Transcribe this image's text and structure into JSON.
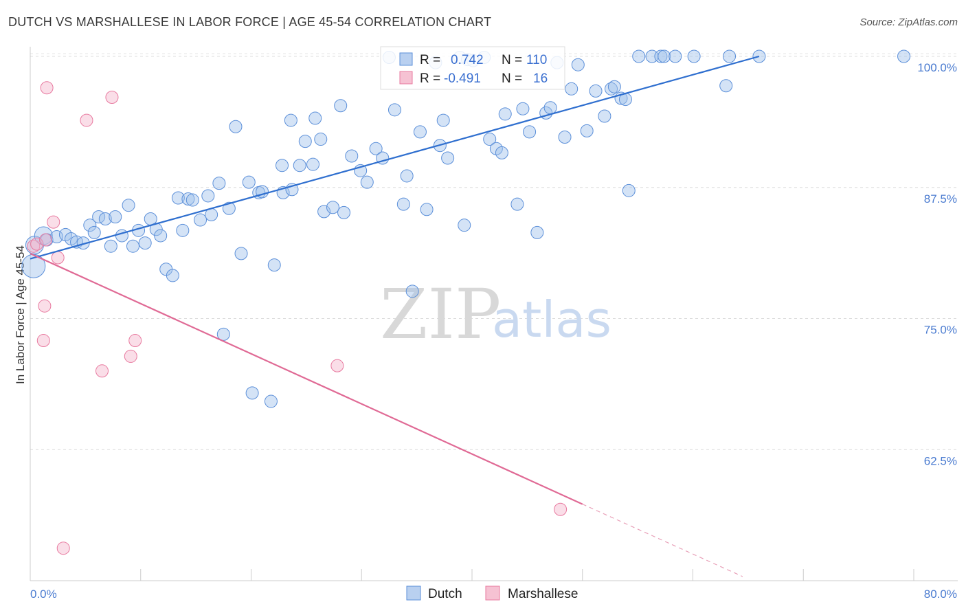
{
  "title": "DUTCH VS MARSHALLESE IN LABOR FORCE | AGE 45-54 CORRELATION CHART",
  "source": "Source: ZipAtlas.com",
  "watermark": {
    "zip": "ZIP",
    "atlas": "atlas"
  },
  "legend_box": {
    "r_label": "R =",
    "n_label": "N =",
    "rows": [
      {
        "r": "0.742",
        "n": "110",
        "color": "#5b8fd9"
      },
      {
        "r": "-0.491",
        "n": "16",
        "color": "#e8799f"
      }
    ]
  },
  "bottom_legend": [
    {
      "name": "Dutch",
      "color": "#5b8fd9"
    },
    {
      "name": "Marshallese",
      "color": "#e8799f"
    }
  ],
  "chart_data": {
    "type": "scatter",
    "title": "DUTCH VS MARSHALLESE IN LABOR FORCE | AGE 45-54 CORRELATION CHART",
    "xlabel": "",
    "ylabel": "In Labor Force | Age 45-54",
    "xlim": [
      0,
      80
    ],
    "ylim": [
      50,
      100
    ],
    "x_tick_labels": [
      "0.0%",
      "80.0%"
    ],
    "y_ticks": [
      62.5,
      75.0,
      87.5,
      100.0
    ],
    "y_tick_labels": [
      "62.5%",
      "75.0%",
      "87.5%",
      "100.0%"
    ],
    "grid": true,
    "series": [
      {
        "name": "Dutch",
        "color": "#5b8fd9",
        "r": 0.742,
        "n": 110,
        "trend": {
          "x0": 0,
          "y0": 80.7,
          "x1": 66,
          "y1": 100.0
        },
        "points": [
          [
            0.3,
            80.0
          ],
          [
            0.4,
            82.0
          ],
          [
            1.2,
            82.9
          ],
          [
            1.5,
            82.5
          ],
          [
            2.4,
            82.8
          ],
          [
            3.2,
            83.0
          ],
          [
            3.7,
            82.6
          ],
          [
            4.2,
            82.3
          ],
          [
            4.8,
            82.2
          ],
          [
            5.4,
            83.9
          ],
          [
            5.8,
            83.2
          ],
          [
            6.2,
            84.7
          ],
          [
            6.8,
            84.5
          ],
          [
            7.3,
            81.9
          ],
          [
            7.7,
            84.7
          ],
          [
            8.3,
            82.9
          ],
          [
            8.9,
            85.8
          ],
          [
            9.3,
            81.9
          ],
          [
            9.8,
            83.4
          ],
          [
            10.4,
            82.2
          ],
          [
            10.9,
            84.5
          ],
          [
            11.4,
            83.5
          ],
          [
            11.8,
            82.9
          ],
          [
            12.3,
            79.7
          ],
          [
            12.9,
            79.1
          ],
          [
            13.4,
            86.5
          ],
          [
            13.8,
            83.4
          ],
          [
            14.3,
            86.4
          ],
          [
            14.7,
            86.3
          ],
          [
            15.4,
            84.4
          ],
          [
            16.1,
            86.7
          ],
          [
            16.4,
            84.9
          ],
          [
            17.1,
            87.9
          ],
          [
            17.5,
            73.5
          ],
          [
            18.0,
            85.5
          ],
          [
            18.6,
            93.3
          ],
          [
            19.1,
            81.2
          ],
          [
            19.8,
            88.0
          ],
          [
            20.1,
            67.9
          ],
          [
            20.7,
            87.0
          ],
          [
            21.0,
            87.1
          ],
          [
            21.8,
            67.1
          ],
          [
            22.1,
            80.1
          ],
          [
            22.8,
            89.6
          ],
          [
            22.9,
            87.0
          ],
          [
            23.6,
            93.9
          ],
          [
            23.7,
            87.3
          ],
          [
            24.4,
            89.6
          ],
          [
            24.9,
            91.9
          ],
          [
            25.6,
            89.7
          ],
          [
            25.8,
            94.1
          ],
          [
            26.3,
            92.1
          ],
          [
            26.6,
            85.2
          ],
          [
            27.4,
            85.6
          ],
          [
            28.1,
            95.3
          ],
          [
            28.4,
            85.1
          ],
          [
            29.1,
            90.5
          ],
          [
            29.9,
            89.1
          ],
          [
            30.5,
            88.0
          ],
          [
            31.3,
            91.2
          ],
          [
            31.9,
            90.3
          ],
          [
            32.5,
            99.9
          ],
          [
            33.0,
            94.9
          ],
          [
            33.8,
            85.9
          ],
          [
            34.1,
            88.6
          ],
          [
            34.6,
            77.6
          ],
          [
            35.3,
            92.8
          ],
          [
            35.9,
            85.4
          ],
          [
            36.7,
            99.4
          ],
          [
            37.1,
            91.5
          ],
          [
            37.4,
            93.9
          ],
          [
            37.8,
            90.3
          ],
          [
            38.9,
            99.9
          ],
          [
            39.6,
            99.7
          ],
          [
            40.1,
            99.6
          ],
          [
            41.1,
            99.9
          ],
          [
            39.3,
            83.9
          ],
          [
            41.6,
            92.1
          ],
          [
            42.2,
            91.2
          ],
          [
            42.7,
            90.8
          ],
          [
            43.0,
            94.5
          ],
          [
            44.1,
            85.9
          ],
          [
            44.6,
            95.0
          ],
          [
            45.2,
            92.8
          ],
          [
            45.9,
            83.2
          ],
          [
            46.7,
            94.6
          ],
          [
            47.1,
            95.1
          ],
          [
            47.7,
            99.4
          ],
          [
            48.4,
            92.3
          ],
          [
            49.0,
            96.9
          ],
          [
            49.6,
            99.2
          ],
          [
            50.4,
            92.9
          ],
          [
            51.2,
            96.7
          ],
          [
            52.0,
            94.3
          ],
          [
            52.6,
            96.9
          ],
          [
            52.9,
            97.1
          ],
          [
            53.5,
            96.0
          ],
          [
            53.9,
            95.9
          ],
          [
            54.2,
            87.2
          ],
          [
            55.1,
            100.0
          ],
          [
            56.3,
            100.0
          ],
          [
            57.1,
            100.0
          ],
          [
            57.4,
            100.0
          ],
          [
            58.4,
            100.0
          ],
          [
            60.1,
            100.0
          ],
          [
            63.0,
            97.2
          ],
          [
            63.3,
            100.0
          ],
          [
            66.0,
            100.0
          ],
          [
            79.1,
            100.0
          ]
        ]
      },
      {
        "name": "Marshallese",
        "color": "#e8799f",
        "r": -0.491,
        "n": 16,
        "trend": {
          "x0": 0,
          "y0": 81.2,
          "x1": 50,
          "y1": 57.3,
          "dash_x1": 64.5,
          "dash_y1": 50.4
        },
        "points": [
          [
            0.3,
            81.9
          ],
          [
            0.6,
            82.1
          ],
          [
            1.3,
            76.2
          ],
          [
            1.2,
            72.9
          ],
          [
            1.5,
            97.0
          ],
          [
            2.1,
            84.2
          ],
          [
            2.5,
            80.8
          ],
          [
            3.0,
            53.1
          ],
          [
            5.1,
            93.9
          ],
          [
            6.5,
            70.0
          ],
          [
            7.4,
            96.1
          ],
          [
            9.1,
            71.4
          ],
          [
            9.5,
            72.9
          ],
          [
            27.8,
            70.5
          ],
          [
            48.0,
            56.8
          ],
          [
            1.4,
            82.5
          ]
        ]
      }
    ]
  }
}
